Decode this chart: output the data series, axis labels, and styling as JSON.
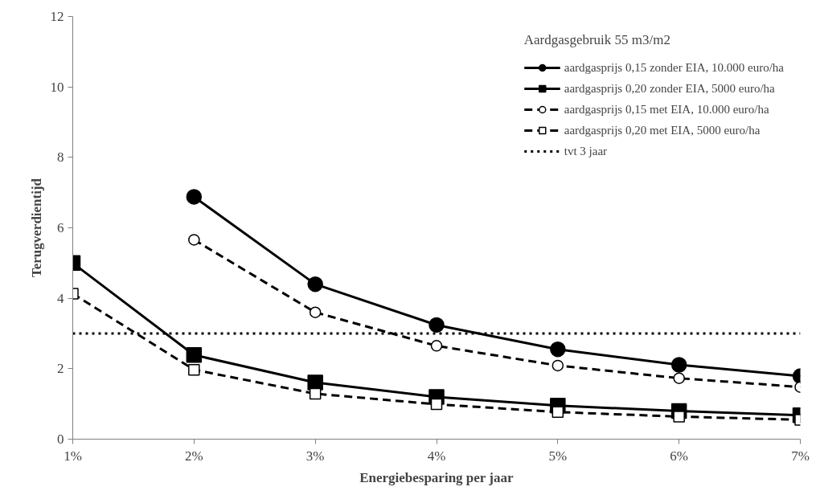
{
  "chart_data": {
    "type": "line",
    "xlabel": "Energiebesparing per jaar",
    "ylabel": "Terugverdientijd",
    "legend_title": "Aardgasgebruik 55 m3/m2",
    "x": [
      1,
      2,
      3,
      4,
      5,
      6,
      7
    ],
    "xlim": [
      1,
      7
    ],
    "xticks": [
      {
        "value": 1,
        "label": "1%"
      },
      {
        "value": 2,
        "label": "2%"
      },
      {
        "value": 3,
        "label": "3%"
      },
      {
        "value": 4,
        "label": "4%"
      },
      {
        "value": 5,
        "label": "5%"
      },
      {
        "value": 6,
        "label": "6%"
      },
      {
        "value": 7,
        "label": "7%"
      }
    ],
    "ylim": [
      0,
      12
    ],
    "yticks": [
      0,
      2,
      4,
      6,
      8,
      10,
      12
    ],
    "grid": false,
    "legend": "top right",
    "series": [
      {
        "name": "aardgasprijs 0,15 zonder EIA, 10.000 euro/ha",
        "color": "#000000",
        "marker": "circle",
        "line_style": "solid",
        "values": [
          null,
          6.88,
          4.4,
          3.24,
          2.55,
          2.11,
          1.79
        ]
      },
      {
        "name": "aardgasprijs 0,20 zonder EIA, 5000 euro/ha",
        "color": "#000000",
        "marker": "square",
        "line_style": "solid",
        "values": [
          5.0,
          2.39,
          1.61,
          1.2,
          0.95,
          0.8,
          0.68
        ]
      },
      {
        "name": "aardgasprijs 0,15 met EIA, 10.000 euro/ha",
        "color": "#000000",
        "marker": "circle",
        "line_style": "dashed",
        "values": [
          null,
          5.66,
          3.6,
          2.65,
          2.09,
          1.73,
          1.48
        ]
      },
      {
        "name": "aardgasprijs 0,20 met EIA, 5000 euro/ha",
        "color": "#000000",
        "marker": "square",
        "line_style": "dashed",
        "values": [
          4.13,
          1.97,
          1.29,
          0.99,
          0.77,
          0.64,
          0.55
        ]
      }
    ],
    "ref_lines": [
      {
        "axis": "y",
        "value": 3,
        "label": "tvt 3 jaar",
        "color": "#000000",
        "line_style": "dotted"
      }
    ]
  }
}
